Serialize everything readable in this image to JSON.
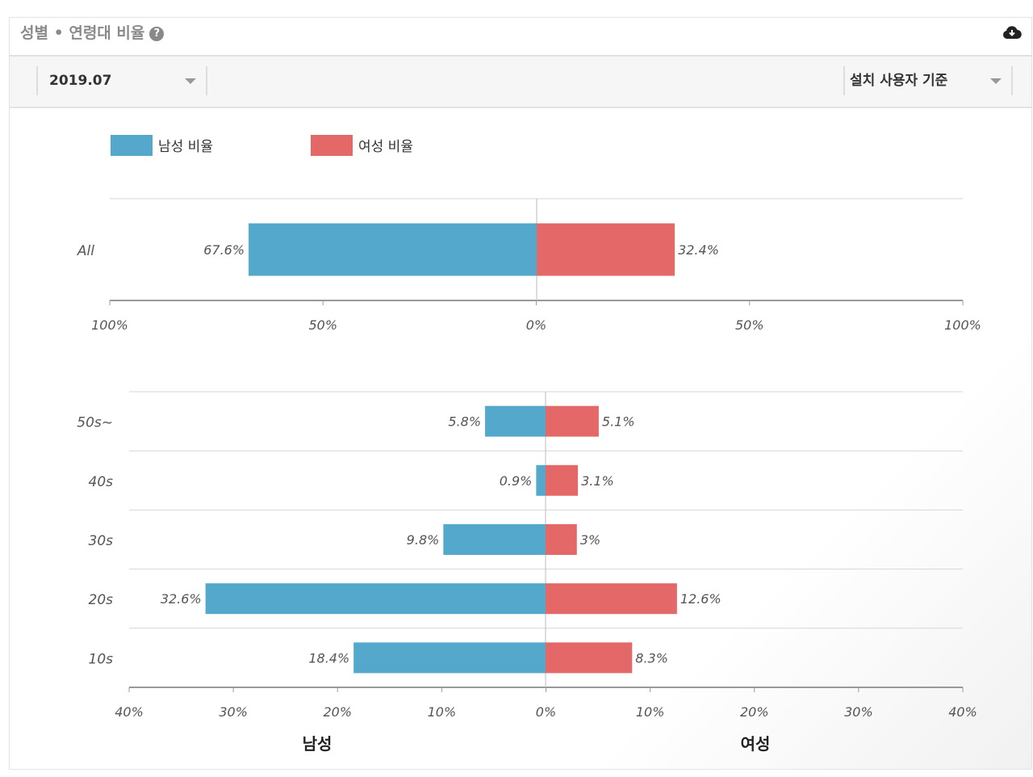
{
  "header": {
    "title": "성별 • 연령대 비율",
    "help_icon": "question-circle-icon",
    "download_icon": "cloud-download-icon"
  },
  "filters": {
    "month": "2019.07",
    "basis": "설치 사용자 기준"
  },
  "colors": {
    "male": "#54a8cb",
    "female": "#e46868"
  },
  "chart_data": [
    {
      "type": "bar",
      "orientation": "horizontal-diverging",
      "legend": [
        "남성 비율",
        "여성 비율"
      ],
      "legend_position": "top-left",
      "categories": [
        "All"
      ],
      "series": [
        {
          "name": "남성 비율",
          "values": [
            67.6
          ]
        },
        {
          "name": "여성 비율",
          "values": [
            32.4
          ]
        }
      ],
      "data_labels": {
        "male": [
          "67.6%"
        ],
        "female": [
          "32.4%"
        ]
      },
      "xlim": [
        -100,
        100
      ],
      "ticks": [
        "100%",
        "50%",
        "0%",
        "50%",
        "100%"
      ],
      "grid": true
    },
    {
      "type": "bar",
      "orientation": "horizontal-diverging",
      "categories": [
        "50s~",
        "40s",
        "30s",
        "20s",
        "10s"
      ],
      "series": [
        {
          "name": "남성 비율",
          "values": [
            5.8,
            0.9,
            9.8,
            32.6,
            18.4
          ]
        },
        {
          "name": "여성 비율",
          "values": [
            5.1,
            3.1,
            3,
            12.6,
            8.3
          ]
        }
      ],
      "data_labels": {
        "male": [
          "5.8%",
          "0.9%",
          "9.8%",
          "32.6%",
          "18.4%"
        ],
        "female": [
          "5.1%",
          "3.1%",
          "3%",
          "12.6%",
          "8.3%"
        ]
      },
      "xlim": [
        -40,
        40
      ],
      "ticks": [
        "40%",
        "30%",
        "20%",
        "10%",
        "0%",
        "10%",
        "20%",
        "30%",
        "40%"
      ],
      "xlabels": {
        "left": "남성",
        "right": "여성"
      },
      "grid": true
    }
  ]
}
